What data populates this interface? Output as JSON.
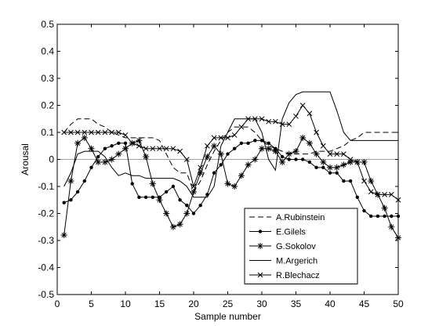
{
  "chart_data": {
    "type": "line",
    "xlabel": "Sample number",
    "ylabel": "Arousal",
    "xlim": [
      0,
      50
    ],
    "ylim": [
      -0.5,
      0.5
    ],
    "xticks": [
      0,
      5,
      10,
      15,
      20,
      25,
      30,
      35,
      40,
      45,
      50
    ],
    "yticks": [
      -0.5,
      -0.4,
      -0.3,
      -0.2,
      -0.1,
      0,
      0.1,
      0.2,
      0.3,
      0.4,
      0.5
    ],
    "grid": false,
    "zero_line": true,
    "legend_position": "bottom-right",
    "x": [
      1,
      2,
      3,
      4,
      5,
      6,
      7,
      8,
      9,
      10,
      11,
      12,
      13,
      14,
      15,
      16,
      17,
      18,
      19,
      20,
      21,
      22,
      23,
      24,
      25,
      26,
      27,
      28,
      29,
      30,
      31,
      32,
      33,
      34,
      35,
      36,
      37,
      38,
      39,
      40,
      41,
      42,
      43,
      44,
      45,
      46,
      47,
      48,
      49,
      50
    ],
    "series": [
      {
        "name": "A.Rubinstein",
        "color": "#000000",
        "dash": "dashed",
        "marker": "none",
        "values": [
          0.1,
          0.13,
          0.15,
          0.15,
          0.15,
          0.13,
          0.12,
          0.1,
          0.09,
          0.08,
          0.08,
          0.08,
          0.08,
          0.08,
          0.07,
          0.02,
          -0.03,
          -0.05,
          -0.05,
          -0.12,
          -0.08,
          -0.02,
          0.03,
          0.07,
          0.1,
          0.12,
          0.12,
          0.12,
          0.1,
          0.07,
          0.05,
          0.04,
          0.03,
          0.02,
          0.02,
          0.02,
          0.02,
          0.03,
          0.03,
          0.03,
          0.04,
          0.05,
          0.07,
          0.08,
          0.1,
          0.1,
          0.1,
          0.1,
          0.1,
          0.1
        ]
      },
      {
        "name": "E.Gilels",
        "color": "#000000",
        "dash": "solid",
        "marker": "dot",
        "values": [
          -0.16,
          -0.15,
          -0.12,
          -0.08,
          -0.03,
          0.01,
          0.04,
          0.05,
          0.06,
          0.06,
          -0.09,
          -0.14,
          -0.14,
          -0.14,
          -0.14,
          -0.12,
          -0.1,
          -0.15,
          -0.17,
          -0.2,
          -0.17,
          -0.13,
          -0.05,
          -0.02,
          0.02,
          0.04,
          0.06,
          0.06,
          0.07,
          0.07,
          0.06,
          0.04,
          0.01,
          0.0,
          0.0,
          0.0,
          -0.01,
          -0.03,
          -0.03,
          -0.05,
          -0.05,
          -0.08,
          -0.08,
          -0.14,
          -0.19,
          -0.21,
          -0.21,
          -0.21,
          -0.21,
          -0.21
        ]
      },
      {
        "name": "G.Sokolov",
        "color": "#000000",
        "dash": "solid",
        "marker": "asterisk",
        "values": [
          -0.28,
          -0.08,
          0.06,
          0.08,
          0.04,
          -0.01,
          -0.01,
          0.0,
          0.02,
          0.04,
          0.06,
          0.07,
          0.01,
          -0.09,
          -0.15,
          -0.2,
          -0.25,
          -0.24,
          -0.2,
          -0.12,
          -0.05,
          0.01,
          0.05,
          0.02,
          -0.09,
          -0.1,
          -0.06,
          -0.02,
          0.0,
          0.04,
          0.04,
          0.03,
          -0.01,
          0.02,
          0.03,
          0.08,
          0.06,
          0.02,
          -0.01,
          -0.03,
          -0.03,
          -0.02,
          -0.01,
          -0.01,
          -0.01,
          -0.08,
          -0.13,
          -0.18,
          -0.25,
          -0.29
        ]
      },
      {
        "name": "M.Argerich",
        "color": "#000000",
        "dash": "solid",
        "marker": "none",
        "values": [
          -0.1,
          -0.05,
          0.02,
          0.03,
          0.03,
          0.03,
          0.01,
          -0.03,
          -0.06,
          -0.05,
          -0.06,
          -0.06,
          -0.07,
          -0.07,
          -0.07,
          -0.07,
          -0.07,
          -0.08,
          -0.1,
          -0.14,
          -0.14,
          -0.14,
          -0.1,
          0.05,
          0.1,
          0.15,
          0.15,
          0.15,
          0.15,
          0.1,
          0.0,
          -0.04,
          0.15,
          0.21,
          0.24,
          0.25,
          0.25,
          0.25,
          0.25,
          0.25,
          0.18,
          0.1,
          0.07,
          0.07,
          0.07,
          0.07,
          0.07,
          0.07,
          0.07,
          0.07
        ]
      },
      {
        "name": "R.Blechacz",
        "color": "#000000",
        "dash": "solid",
        "marker": "x",
        "values": [
          0.1,
          0.1,
          0.1,
          0.1,
          0.1,
          0.1,
          0.1,
          0.1,
          0.1,
          0.09,
          0.06,
          0.05,
          0.04,
          0.04,
          0.04,
          0.04,
          0.04,
          0.03,
          0.0,
          -0.1,
          -0.03,
          0.05,
          0.08,
          0.08,
          0.08,
          0.09,
          0.12,
          0.15,
          0.15,
          0.15,
          0.14,
          0.14,
          0.13,
          0.13,
          0.16,
          0.2,
          0.17,
          0.1,
          0.05,
          0.02,
          0.02,
          0.02,
          0.0,
          -0.01,
          -0.08,
          -0.12,
          -0.13,
          -0.13,
          -0.13,
          -0.15
        ]
      }
    ]
  }
}
